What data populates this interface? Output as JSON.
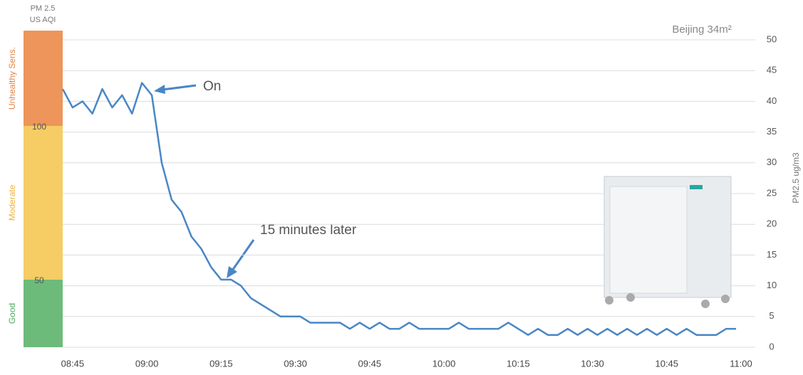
{
  "chart_data": {
    "type": "line",
    "title": "Beijing 34m²",
    "y_label": "PM2.5 ug/m3",
    "band_header": [
      "PM 2.5",
      "US AQI"
    ],
    "x": [
      "08:43",
      "08:45",
      "08:47",
      "08:49",
      "08:51",
      "08:53",
      "08:55",
      "08:57",
      "08:59",
      "09:01",
      "09:03",
      "09:05",
      "09:07",
      "09:09",
      "09:11",
      "09:13",
      "09:15",
      "09:17",
      "09:19",
      "09:21",
      "09:23",
      "09:25",
      "09:27",
      "09:29",
      "09:31",
      "09:33",
      "09:35",
      "09:37",
      "09:39",
      "09:41",
      "09:43",
      "09:45",
      "09:47",
      "09:49",
      "09:51",
      "09:53",
      "09:55",
      "09:57",
      "09:59",
      "10:01",
      "10:03",
      "10:05",
      "10:07",
      "10:09",
      "10:11",
      "10:13",
      "10:15",
      "10:17",
      "10:19",
      "10:21",
      "10:23",
      "10:25",
      "10:27",
      "10:29",
      "10:31",
      "10:33",
      "10:35",
      "10:37",
      "10:39",
      "10:41",
      "10:43",
      "10:45",
      "10:47",
      "10:49",
      "10:51",
      "10:53",
      "10:55",
      "10:57",
      "10:59"
    ],
    "series": [
      {
        "name": "PM2.5",
        "color": "#4a86c5",
        "values": [
          42,
          39,
          40,
          38,
          42,
          39,
          41,
          38,
          43,
          41,
          30,
          24,
          22,
          18,
          16,
          13,
          11,
          11,
          10,
          8,
          7,
          6,
          5,
          5,
          5,
          4,
          4,
          4,
          4,
          3,
          4,
          3,
          4,
          3,
          3,
          4,
          3,
          3,
          3,
          3,
          4,
          3,
          3,
          3,
          3,
          4,
          3,
          2,
          3,
          2,
          2,
          3,
          2,
          3,
          2,
          3,
          2,
          3,
          2,
          3,
          2,
          3,
          2,
          3,
          2,
          2,
          2,
          3,
          3
        ]
      }
    ],
    "xlim": [
      "08:43",
      "11:00"
    ],
    "xticks": [
      "08:45",
      "09:00",
      "09:15",
      "09:30",
      "09:45",
      "10:00",
      "10:15",
      "10:30",
      "10:45",
      "11:00"
    ],
    "ylim": [
      0,
      50
    ],
    "yticks": [
      0,
      5,
      10,
      15,
      20,
      25,
      30,
      35,
      40,
      45,
      50
    ],
    "grid": true,
    "aqi_bands": [
      {
        "label": "Good",
        "from": 0,
        "to": 11,
        "color": "#6dbb7a",
        "text_color": "#4aa85a"
      },
      {
        "label": "Moderate",
        "from": 11,
        "to": 36,
        "color": "#f6cc64",
        "text_color": "#efb23c"
      },
      {
        "label": "Unhealthy Sens.",
        "from": 36,
        "to": 51.5,
        "color": "#ed955a",
        "text_color": "#e5834a"
      }
    ],
    "aqi_ticks": [
      {
        "value": 11,
        "label": "50"
      },
      {
        "value": 36,
        "label": "100"
      }
    ],
    "annotations": [
      {
        "text": "On"
      },
      {
        "text": "15 minutes later"
      }
    ]
  }
}
